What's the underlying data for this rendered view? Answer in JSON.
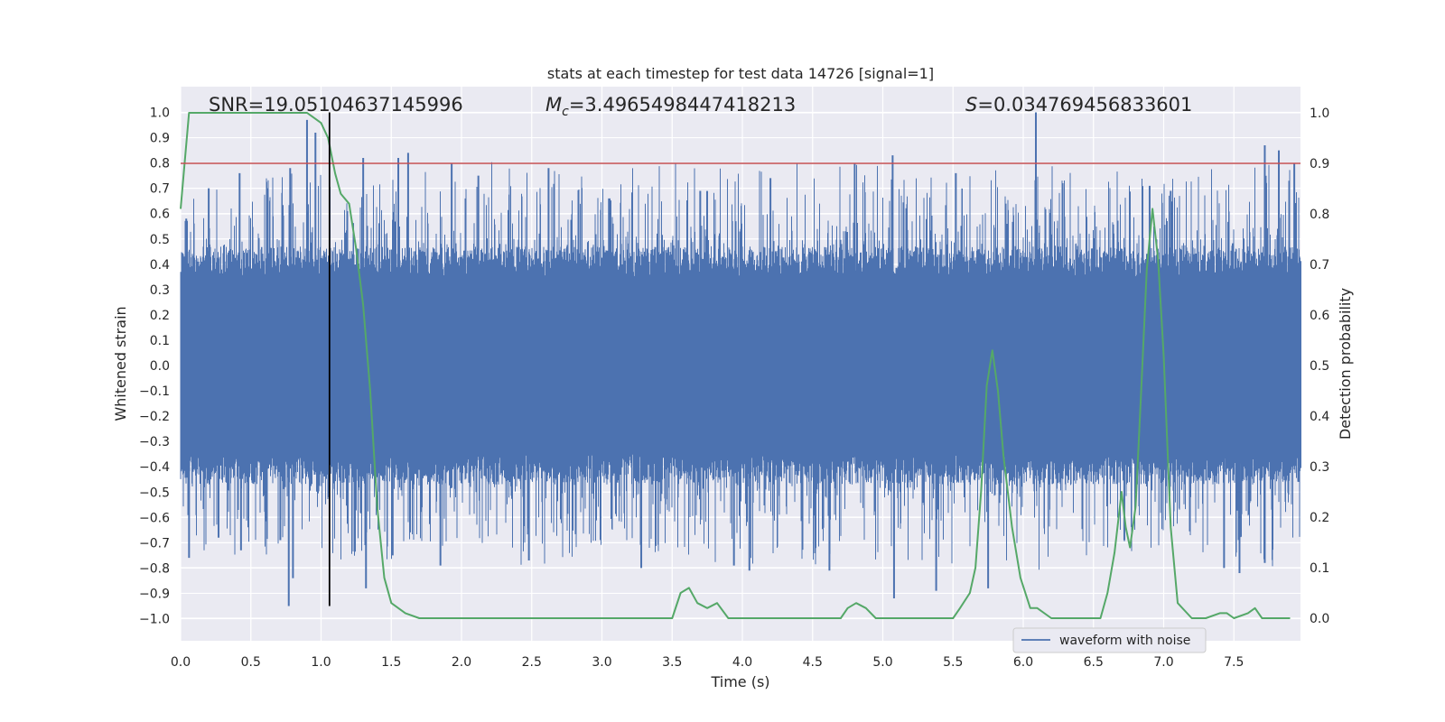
{
  "chart_data": {
    "type": "line",
    "title": "stats at each timestep for test data 14726 [signal=1]",
    "xlabel": "Time (s)",
    "ylabel_left": "Whitened strain",
    "ylabel_right": "Detection probability",
    "xlim": [
      0.0,
      8.0
    ],
    "ylim_left": [
      -1.05,
      1.05
    ],
    "ylim_right": [
      -0.05,
      1.05
    ],
    "x_ticks": [
      "0.0",
      "0.5",
      "1.0",
      "1.5",
      "2.0",
      "2.5",
      "3.0",
      "3.5",
      "4.0",
      "4.5",
      "5.0",
      "5.5",
      "6.0",
      "6.5",
      "7.0",
      "7.5"
    ],
    "y_ticks_left": [
      "1.0",
      "0.9",
      "0.8",
      "0.7",
      "0.6",
      "0.5",
      "0.4",
      "0.3",
      "0.2",
      "0.1",
      "0.0",
      "-0.1",
      "-0.2",
      "-0.3",
      "-0.4",
      "-0.5",
      "-0.6",
      "-0.7",
      "-0.8",
      "-0.9",
      "-1.0"
    ],
    "y_ticks_right": [
      "1.0",
      "0.9",
      "0.8",
      "0.7",
      "0.6",
      "0.5",
      "0.4",
      "0.3",
      "0.2",
      "0.1",
      "0.0"
    ],
    "grid": true,
    "legend_position": "bottom-right",
    "annotations": {
      "snr": "SNR=19.05104637145996",
      "mc_symbol": "M",
      "mc_sub": "c",
      "mc_value": "=3.4965498447418213",
      "s_symbol": "S",
      "s_value": "=0.034769456833601"
    },
    "threshold": {
      "axis": "right",
      "value": 0.9,
      "color": "#c44e52"
    },
    "vertical_marker": {
      "x": 1.06,
      "ymin_left": -0.95,
      "ymax_left": 1.0,
      "color": "#000000"
    },
    "series": [
      {
        "name": "waveform with noise",
        "axis": "left",
        "color": "#4c72b0",
        "note_kind": "noise",
        "envelope_core": 0.35,
        "peaks": [
          [
            0.04,
            0.58
          ],
          [
            0.2,
            0.7
          ],
          [
            0.42,
            0.76
          ],
          [
            0.62,
            0.7
          ],
          [
            0.78,
            0.78
          ],
          [
            0.9,
            0.97
          ],
          [
            0.96,
            0.92
          ],
          [
            1.3,
            0.82
          ],
          [
            1.55,
            0.82
          ],
          [
            1.62,
            0.84
          ],
          [
            1.93,
            0.8
          ],
          [
            2.12,
            0.75
          ],
          [
            2.62,
            0.78
          ],
          [
            3.05,
            0.66
          ],
          [
            3.7,
            0.69
          ],
          [
            4.2,
            0.74
          ],
          [
            4.8,
            0.8
          ],
          [
            5.07,
            0.83
          ],
          [
            5.52,
            0.76
          ],
          [
            6.09,
            1.0
          ],
          [
            6.28,
            0.72
          ],
          [
            6.9,
            0.71
          ],
          [
            7.05,
            0.69
          ],
          [
            7.72,
            0.87
          ],
          [
            7.82,
            0.85
          ],
          [
            7.93,
            0.8
          ]
        ],
        "troughs": [
          [
            0.06,
            -0.76
          ],
          [
            0.27,
            -0.68
          ],
          [
            0.43,
            -0.73
          ],
          [
            0.71,
            -0.69
          ],
          [
            0.77,
            -0.95
          ],
          [
            0.8,
            -0.84
          ],
          [
            1.32,
            -0.88
          ],
          [
            1.51,
            -0.75
          ],
          [
            1.85,
            -0.79
          ],
          [
            2.48,
            -0.77
          ],
          [
            3.28,
            -0.8
          ],
          [
            3.94,
            -0.79
          ],
          [
            4.05,
            -0.81
          ],
          [
            4.62,
            -0.81
          ],
          [
            5.08,
            -0.92
          ],
          [
            5.38,
            -0.89
          ],
          [
            5.75,
            -0.88
          ],
          [
            6.72,
            -0.69
          ],
          [
            7.43,
            -0.8
          ],
          [
            7.54,
            -0.82
          ],
          [
            7.72,
            -0.78
          ]
        ]
      },
      {
        "name": "",
        "axis": "right",
        "color": "#55a868",
        "x": [
          0.0,
          0.06,
          0.12,
          0.3,
          0.6,
          0.8,
          0.9,
          0.95,
          1.0,
          1.05,
          1.1,
          1.14,
          1.2,
          1.25,
          1.3,
          1.35,
          1.4,
          1.45,
          1.5,
          1.6,
          1.7,
          1.8,
          1.9,
          2.0,
          2.1,
          2.2,
          2.3,
          2.4,
          2.5,
          2.6,
          2.7,
          2.8,
          2.9,
          3.0,
          3.2,
          3.3,
          3.4,
          3.5,
          3.56,
          3.62,
          3.68,
          3.75,
          3.82,
          3.9,
          4.0,
          4.2,
          4.4,
          4.6,
          4.7,
          4.75,
          4.81,
          4.88,
          4.95,
          5.1,
          5.3,
          5.4,
          5.5,
          5.55,
          5.62,
          5.66,
          5.7,
          5.74,
          5.78,
          5.82,
          5.86,
          5.92,
          5.98,
          6.05,
          6.1,
          6.2,
          6.4,
          6.55,
          6.6,
          6.65,
          6.7,
          6.73,
          6.76,
          6.8,
          6.84,
          6.88,
          6.92,
          6.96,
          7.0,
          7.05,
          7.1,
          7.2,
          7.3,
          7.4,
          7.45,
          7.5,
          7.6,
          7.65,
          7.7,
          7.8,
          7.9
        ],
        "values": [
          0.81,
          1.0,
          1.0,
          1.0,
          1.0,
          1.0,
          1.0,
          0.99,
          0.98,
          0.95,
          0.88,
          0.84,
          0.82,
          0.73,
          0.62,
          0.45,
          0.22,
          0.08,
          0.03,
          0.01,
          0.0,
          0.0,
          0.0,
          0.0,
          0.0,
          0.0,
          0.0,
          0.0,
          0.0,
          0.0,
          0.0,
          0.0,
          0.0,
          0.0,
          0.0,
          0.0,
          0.0,
          0.0,
          0.05,
          0.06,
          0.03,
          0.02,
          0.03,
          0.0,
          0.0,
          0.0,
          0.0,
          0.0,
          0.0,
          0.02,
          0.03,
          0.02,
          0.0,
          0.0,
          0.0,
          0.0,
          0.0,
          0.02,
          0.05,
          0.1,
          0.25,
          0.46,
          0.53,
          0.45,
          0.32,
          0.18,
          0.08,
          0.02,
          0.02,
          0.0,
          0.0,
          0.0,
          0.05,
          0.13,
          0.25,
          0.18,
          0.14,
          0.22,
          0.45,
          0.69,
          0.81,
          0.71,
          0.52,
          0.18,
          0.03,
          0.0,
          0.0,
          0.01,
          0.01,
          0.0,
          0.01,
          0.02,
          0.0,
          0.0,
          0.0
        ]
      }
    ]
  }
}
